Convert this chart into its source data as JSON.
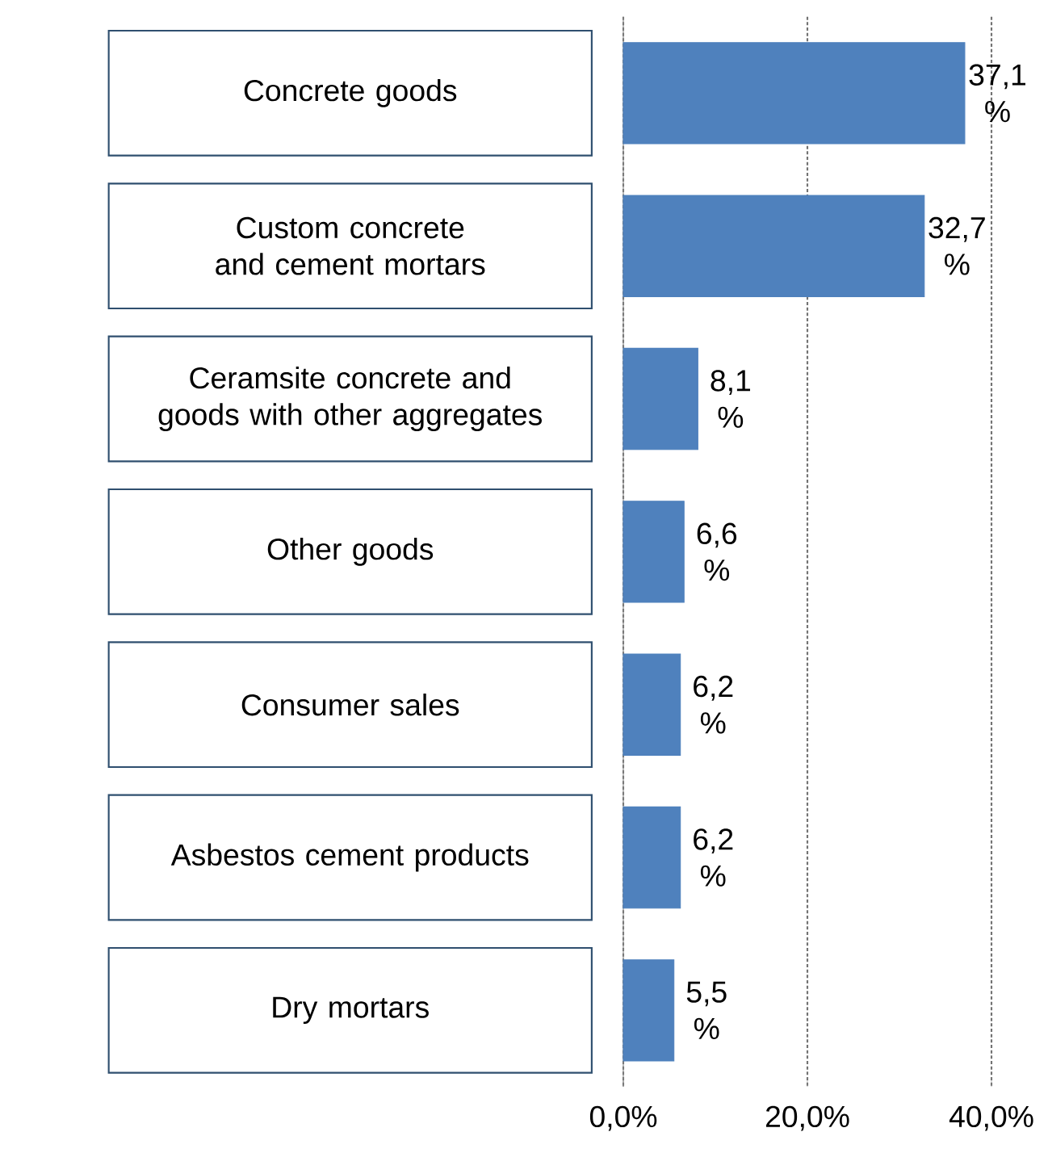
{
  "chart_data": {
    "type": "bar",
    "orientation": "horizontal",
    "categories": [
      "Concrete goods",
      "Custom concrete and cement mortars",
      "Ceramsite concrete and goods with other aggregates",
      "Other goods",
      "Consumer sales",
      "Asbestos  cement products",
      "Dry mortars"
    ],
    "values": [
      37.1,
      32.7,
      8.1,
      6.6,
      6.2,
      6.2,
      5.5
    ],
    "value_labels": [
      "37,1 %",
      "32,7 %",
      "8,1 %",
      "6,6 %",
      "6,2 %",
      "6,2 %",
      "5,5 %"
    ],
    "color": "#4f81bd",
    "xlim": [
      0,
      40
    ],
    "xticks": [
      {
        "value": 0,
        "label": "0,0%"
      },
      {
        "value": 20,
        "label": "20,0%"
      },
      {
        "value": 40,
        "label": "40,0%"
      }
    ],
    "grid": "x"
  }
}
